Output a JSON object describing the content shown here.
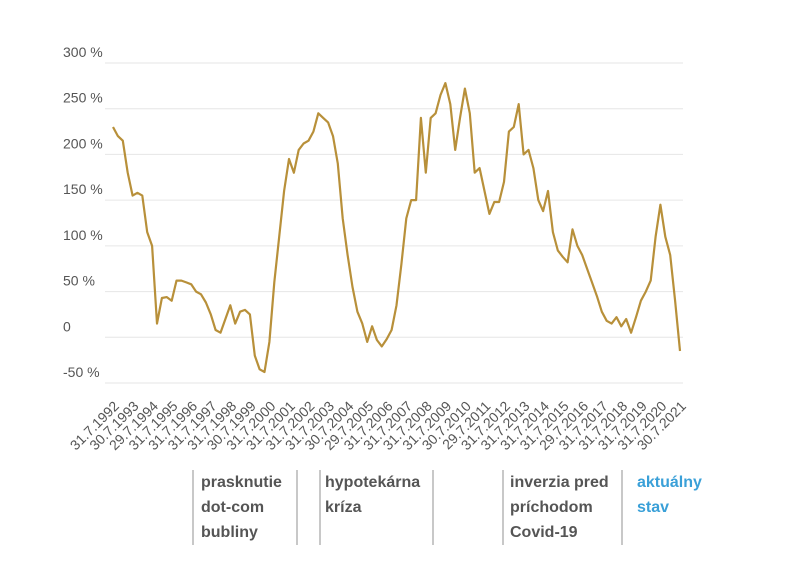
{
  "chart_data": {
    "type": "line",
    "categories": [
      "31.7.1992",
      null,
      null,
      null,
      "30.7.1993",
      null,
      null,
      null,
      "29.7.1994",
      null,
      null,
      null,
      "31.7.1995",
      null,
      null,
      null,
      "31.7.1996",
      null,
      null,
      null,
      "31.7.1997",
      null,
      null,
      null,
      "31.7.1998",
      null,
      null,
      null,
      "30.7.1999",
      null,
      null,
      null,
      "31.7.2000",
      null,
      null,
      null,
      "31.7.2001",
      null,
      null,
      null,
      "31.7.2002",
      null,
      null,
      null,
      "31.7.2003",
      null,
      null,
      null,
      "30.7.2004",
      null,
      null,
      null,
      "29.7.2005",
      null,
      null,
      null,
      "31.7.2006",
      null,
      null,
      null,
      "31.7.2007",
      null,
      null,
      null,
      "31.7.2008",
      null,
      null,
      null,
      "31.7.2009",
      null,
      null,
      null,
      "30.7.2010",
      null,
      null,
      null,
      "29.7.2011",
      null,
      null,
      null,
      "31.7.2012",
      null,
      null,
      null,
      "31.7.2013",
      null,
      null,
      null,
      "31.7.2014",
      null,
      null,
      null,
      "31.7.2015",
      null,
      null,
      null,
      "29.7.2016",
      null,
      null,
      null,
      "31.7.2017",
      null,
      null,
      null,
      "31.7.2018",
      null,
      null,
      null,
      "31.7.2019",
      null,
      null,
      null,
      "31.7.2020",
      null,
      null,
      null,
      "30.7.2021"
    ],
    "series": [
      {
        "color": "#b8903a",
        "values": [
          230,
          220,
          215,
          180,
          155,
          158,
          155,
          115,
          100,
          15,
          43,
          44,
          40,
          62,
          62,
          60,
          58,
          50,
          47,
          38,
          25,
          8,
          5,
          20,
          35,
          15,
          28,
          30,
          25,
          -20,
          -35,
          -38,
          -5,
          60,
          110,
          160,
          195,
          180,
          205,
          212,
          215,
          225,
          245,
          240,
          235,
          220,
          190,
          130,
          90,
          55,
          28,
          15,
          -5,
          12,
          -3,
          -10,
          -2,
          8,
          35,
          80,
          130,
          150,
          150,
          240,
          180,
          240,
          245,
          265,
          278,
          255,
          205,
          240,
          272,
          245,
          180,
          185,
          160,
          135,
          148,
          148,
          170,
          225,
          230,
          255,
          200,
          205,
          185,
          150,
          138,
          160,
          115,
          95,
          88,
          82,
          118,
          100,
          90,
          75,
          60,
          45,
          28,
          18,
          15,
          22,
          12,
          20,
          5,
          22,
          40,
          50,
          62,
          110,
          145,
          110,
          90,
          40,
          -15
        ]
      }
    ],
    "ylim": [
      -50,
      300
    ],
    "yticks": [
      {
        "value": -50,
        "label": "-50 %"
      },
      0,
      {
        "value": 50,
        "label": "50 %"
      },
      {
        "value": 100,
        "label": "100 %"
      },
      {
        "value": 150,
        "label": "150 %"
      },
      {
        "value": 200,
        "label": "200 %"
      },
      {
        "value": 250,
        "label": "250 %"
      },
      {
        "value": 300,
        "label": "300 %"
      }
    ],
    "grid": true,
    "annotations": [
      {
        "lines": [
          "prasknutie",
          "dot-com",
          "bubliny"
        ],
        "color": "#555555"
      },
      {
        "lines": [
          "hypotekárna",
          "kríza"
        ],
        "color": "#555555"
      },
      {
        "lines": [
          "inverzia pred",
          "príchodom",
          "Covid-19"
        ],
        "color": "#555555"
      },
      {
        "lines": [
          "aktuálny",
          "stav"
        ],
        "color": "#3aa0d8"
      }
    ]
  }
}
